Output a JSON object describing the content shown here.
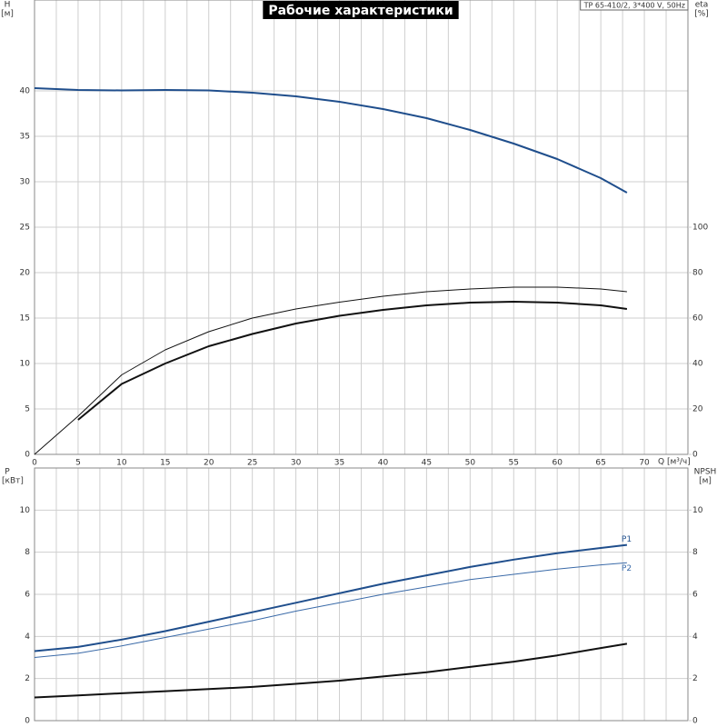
{
  "chart_data": [
    {
      "type": "line",
      "title": "Рабочие характеристики",
      "subtitle": "TP 65-410/2, 3*400 V, 50Hz",
      "y_label": "H",
      "y_unit": "[м]",
      "y2_label": "eta",
      "y2_unit": "[%]",
      "x_label": "Q [м³/ч]",
      "x": [
        0,
        5,
        10,
        15,
        20,
        25,
        30,
        35,
        40,
        45,
        50,
        55,
        60,
        65,
        68
      ],
      "xlim": [
        0,
        75
      ],
      "xticks": [
        0,
        5,
        10,
        15,
        20,
        25,
        30,
        35,
        40,
        45,
        50,
        55,
        60,
        65,
        70
      ],
      "ylim": [
        0,
        50
      ],
      "yticks": [
        0,
        5,
        10,
        15,
        20,
        25,
        30,
        35,
        40
      ],
      "y2lim": [
        0,
        200
      ],
      "y2ticks": [
        0,
        20,
        40,
        60,
        80,
        100
      ],
      "grid": true,
      "series": [
        {
          "color": "#1f4e8c",
          "width": 2,
          "values": [
            40.3,
            40.1,
            40.05,
            40.1,
            40.05,
            39.8,
            39.4,
            38.8,
            38,
            37,
            35.7,
            34.2,
            32.5,
            30.4,
            28.8
          ]
        },
        {
          "color": "#111111",
          "width": 1,
          "axis": "y2",
          "values": [
            0,
            16.8,
            35,
            46,
            54,
            60,
            64,
            67,
            69.6,
            71.6,
            72.8,
            73.6,
            73.6,
            72.8,
            71.6
          ]
        },
        {
          "color": "#111111",
          "width": 2,
          "axis": "y2",
          "values": [
            null,
            15.2,
            31,
            40,
            47.6,
            53,
            57.6,
            61,
            63.6,
            65.6,
            66.8,
            67.2,
            66.8,
            65.6,
            64
          ]
        }
      ]
    },
    {
      "type": "line",
      "y_label": "P",
      "y_unit": "[кВт]",
      "y2_label": "NPSH",
      "y2_unit": "[м]",
      "x": [
        0,
        5,
        10,
        15,
        20,
        25,
        30,
        35,
        40,
        45,
        50,
        55,
        60,
        65,
        68
      ],
      "xlim": [
        0,
        75
      ],
      "ylim": [
        0,
        12
      ],
      "yticks": [
        0,
        2,
        4,
        6,
        8,
        10
      ],
      "y2lim": [
        0,
        12
      ],
      "y2ticks": [
        0,
        2,
        4,
        6,
        8,
        10
      ],
      "grid": true,
      "series": [
        {
          "name": "P1",
          "color": "#1f4e8c",
          "width": 2,
          "values": [
            3.3,
            3.5,
            3.85,
            4.25,
            4.7,
            5.15,
            5.6,
            6.05,
            6.5,
            6.9,
            7.3,
            7.65,
            7.95,
            8.2,
            8.35
          ]
        },
        {
          "name": "P2",
          "color": "#3a6aa8",
          "width": 1,
          "values": [
            3.0,
            3.2,
            3.55,
            3.95,
            4.35,
            4.75,
            5.2,
            5.6,
            6.0,
            6.35,
            6.7,
            6.95,
            7.2,
            7.4,
            7.5
          ]
        },
        {
          "color": "#111111",
          "width": 2,
          "axis": "y2",
          "values": [
            1.1,
            1.2,
            1.3,
            1.4,
            1.5,
            1.6,
            1.75,
            1.9,
            2.1,
            2.3,
            2.55,
            2.8,
            3.1,
            3.45,
            3.65
          ]
        }
      ]
    }
  ]
}
